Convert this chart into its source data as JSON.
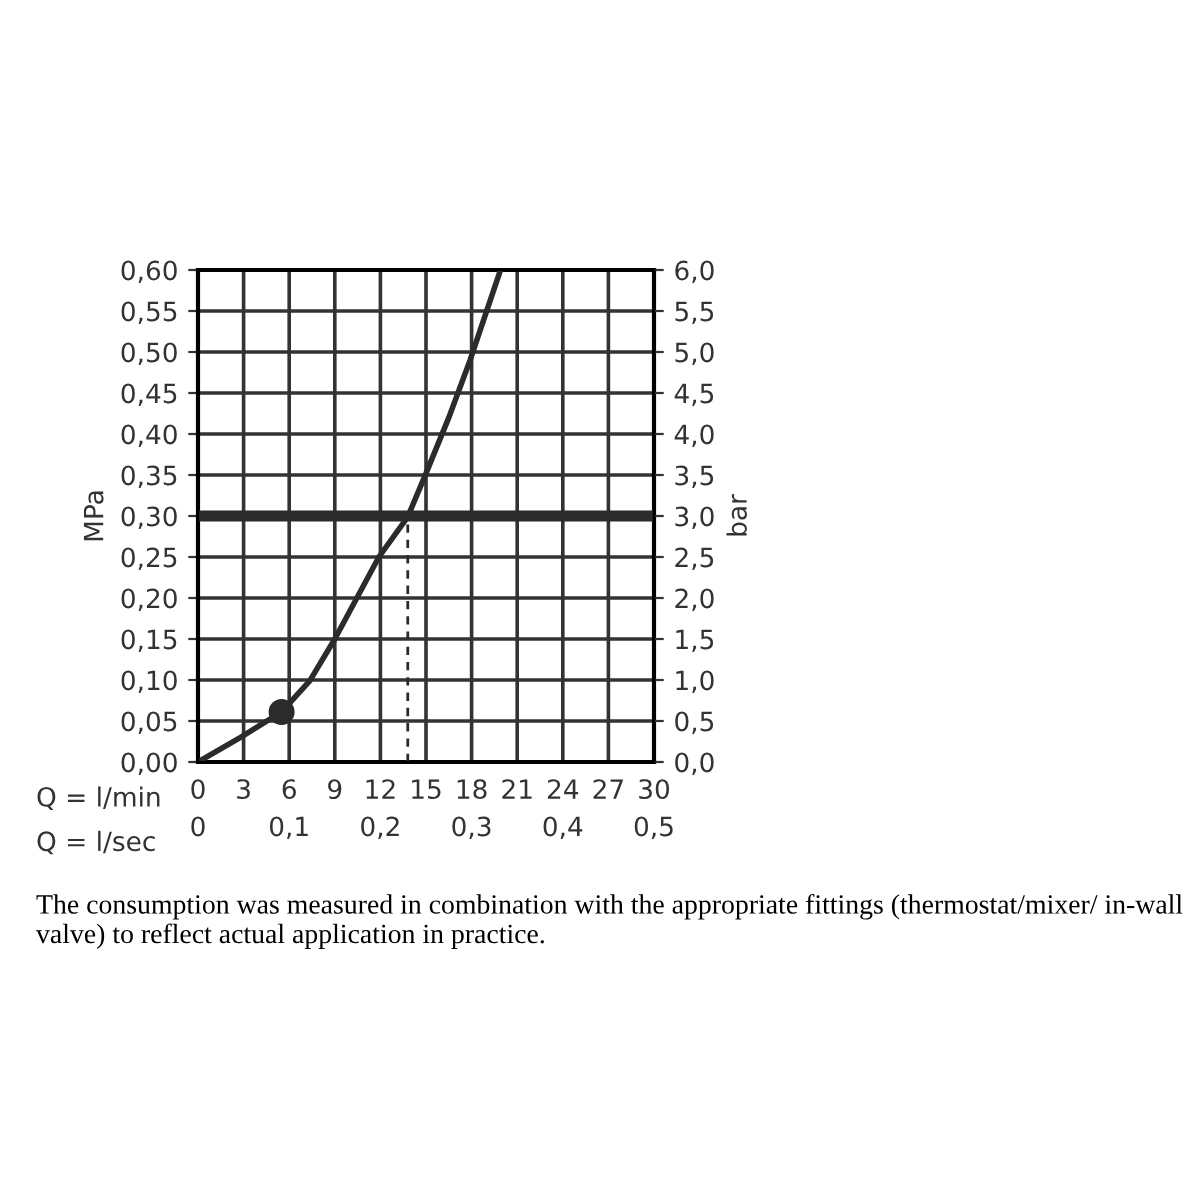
{
  "chart_data": {
    "type": "line",
    "xlabel": "Q = l/min",
    "x2label": "Q = l/sec",
    "ylabel": "MPa",
    "y2label": "bar",
    "series": [
      {
        "color": "#2b2b2b",
        "x": [
          0,
          2.8,
          5.5,
          7.35,
          9.0,
          11.9,
          13.8,
          15.0,
          16.5,
          17.9,
          19.9
        ],
        "values": [
          0,
          0.03,
          0.061,
          0.099,
          0.15,
          0.25,
          0.299,
          0.352,
          0.42,
          0.49,
          0.6
        ]
      },
      {
        "type": "scatter",
        "color": "#2b2b2b",
        "marker": "circle",
        "x": [
          5.5
        ],
        "values": [
          0.061
        ]
      },
      {
        "type": "line",
        "color": "#2b2b2b",
        "line_style": "dashed",
        "x": [
          13.8,
          13.8
        ],
        "values": [
          0,
          0.3
        ]
      }
    ],
    "ref_lines": [
      {
        "axis": "y",
        "value": 0.3,
        "color": "#2b2b2b"
      }
    ],
    "xlim": [
      0,
      30
    ],
    "xticks": [
      0,
      3,
      6,
      9,
      12,
      15,
      18,
      21,
      24,
      27,
      30
    ],
    "x2lim": [
      0,
      0.5
    ],
    "x2ticks": [
      0,
      {
        "value": 0.1,
        "label": "0,1"
      },
      {
        "value": 0.2,
        "label": "0,2"
      },
      {
        "value": 0.3,
        "label": "0,3"
      },
      {
        "value": 0.4,
        "label": "0,4"
      },
      {
        "value": 0.5,
        "label": "0,5"
      }
    ],
    "ylim": [
      0,
      0.6
    ],
    "yticks": [
      {
        "value": 0,
        "label": "0,00"
      },
      {
        "value": 0.05,
        "label": "0,05"
      },
      {
        "value": 0.1,
        "label": "0,10"
      },
      {
        "value": 0.15,
        "label": "0,15"
      },
      {
        "value": 0.2,
        "label": "0,20"
      },
      {
        "value": 0.25,
        "label": "0,25"
      },
      {
        "value": 0.3,
        "label": "0,30"
      },
      {
        "value": 0.35,
        "label": "0,35"
      },
      {
        "value": 0.4,
        "label": "0,40"
      },
      {
        "value": 0.45,
        "label": "0,45"
      },
      {
        "value": 0.5,
        "label": "0,50"
      },
      {
        "value": 0.55,
        "label": "0,55"
      },
      {
        "value": 0.6,
        "label": "0,60"
      }
    ],
    "y2lim": [
      0,
      6
    ],
    "y2ticks": [
      {
        "value": 0,
        "label": "0,0"
      },
      {
        "value": 0.5,
        "label": "0,5"
      },
      {
        "value": 1,
        "label": "1,0"
      },
      {
        "value": 1.5,
        "label": "1,5"
      },
      {
        "value": 2,
        "label": "2,0"
      },
      {
        "value": 2.5,
        "label": "2,5"
      },
      {
        "value": 3,
        "label": "3,0"
      },
      {
        "value": 3.5,
        "label": "3,5"
      },
      {
        "value": 4,
        "label": "4,0"
      },
      {
        "value": 4.5,
        "label": "4,5"
      },
      {
        "value": 5,
        "label": "5,0"
      },
      {
        "value": 5.5,
        "label": "5,5"
      },
      {
        "value": 6,
        "label": "6,0"
      }
    ],
    "grid": true,
    "annotations": [
      "The consumption was measured in combination with the appropriate fittings (thermostat/mixer/ in-wall valve) to reflect actual application in practice."
    ]
  }
}
